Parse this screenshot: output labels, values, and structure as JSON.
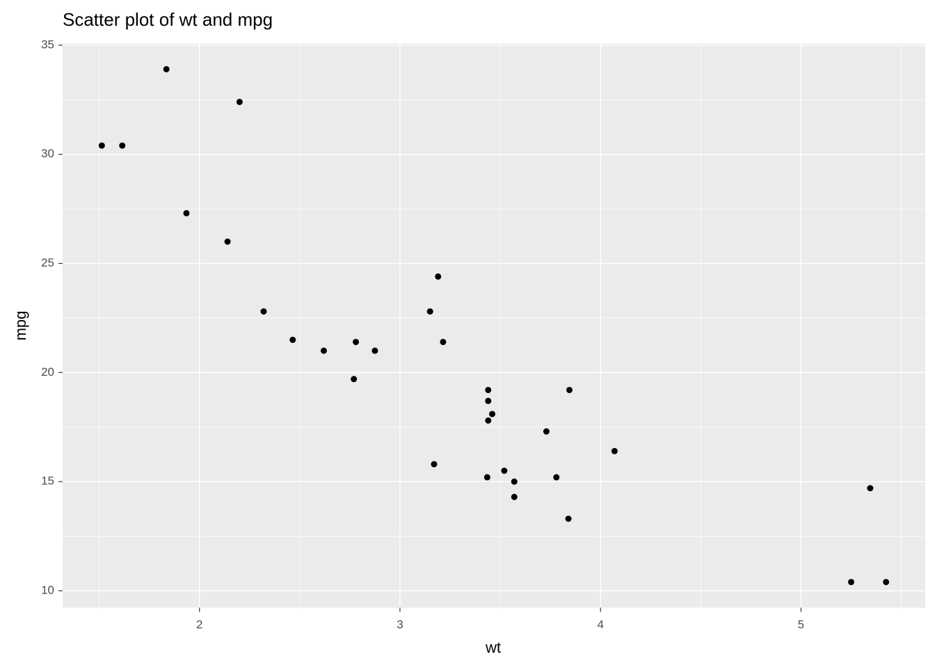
{
  "chart_data": {
    "type": "scatter",
    "title": "Scatter plot of wt and mpg",
    "x_label": "wt",
    "y_label": "mpg",
    "x": [
      2.62,
      2.875,
      2.32,
      3.215,
      3.44,
      3.46,
      3.57,
      3.19,
      3.15,
      3.44,
      3.44,
      4.07,
      3.73,
      3.78,
      5.25,
      5.424,
      5.345,
      2.2,
      1.615,
      1.835,
      2.465,
      3.52,
      3.435,
      3.84,
      3.845,
      1.935,
      2.14,
      1.513,
      3.17,
      2.77,
      3.57,
      2.78
    ],
    "values": [
      21.0,
      21.0,
      22.8,
      21.4,
      18.7,
      18.1,
      14.3,
      24.4,
      22.8,
      19.2,
      17.8,
      16.4,
      17.3,
      15.2,
      10.4,
      10.4,
      14.7,
      32.4,
      30.4,
      33.9,
      21.5,
      15.5,
      15.2,
      13.3,
      19.2,
      27.3,
      26.0,
      30.4,
      15.8,
      19.7,
      15.0,
      21.4
    ],
    "color": "#000000",
    "xlim": [
      1.3175,
      5.6196
    ],
    "ylim": [
      9.225,
      35.075
    ],
    "xticks": [
      2,
      3,
      4,
      5
    ],
    "yticks": [
      10,
      15,
      20,
      25,
      30,
      35
    ],
    "grid": true
  }
}
